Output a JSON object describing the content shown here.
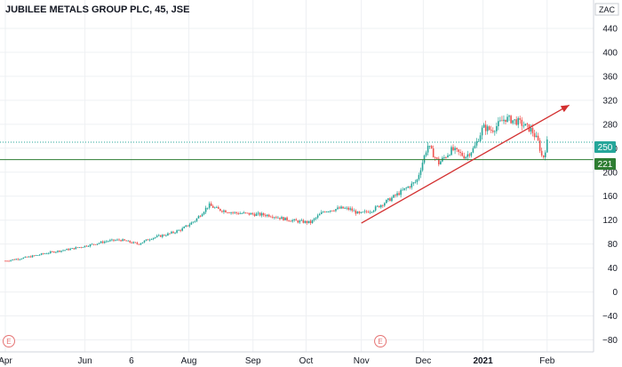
{
  "chart_data": {
    "type": "candlestick",
    "title": "JUBILEE METALS GROUP PLC, 45, JSE",
    "currency": "ZAC",
    "ylim": [
      -100,
      480
    ],
    "y_ticks": [
      -80,
      -40,
      0,
      40,
      80,
      120,
      160,
      200,
      240,
      280,
      320,
      360,
      400,
      440
    ],
    "y_tick_labels": [
      "−80",
      "−40",
      "0",
      "40",
      "80",
      "120",
      "160",
      "200",
      "240",
      "280",
      "320",
      "360",
      "400",
      "440"
    ],
    "x_ticks": [
      {
        "label": "Apr",
        "pos": 0.0,
        "bold": false
      },
      {
        "label": "Jun",
        "pos": 1.8,
        "bold": false
      },
      {
        "label": "6",
        "pos": 2.85,
        "bold": false
      },
      {
        "label": "Aug",
        "pos": 4.15,
        "bold": false
      },
      {
        "label": "Sep",
        "pos": 5.6,
        "bold": false
      },
      {
        "label": "Oct",
        "pos": 6.8,
        "bold": false
      },
      {
        "label": "Nov",
        "pos": 8.05,
        "bold": false
      },
      {
        "label": "Dec",
        "pos": 9.45,
        "bold": false
      },
      {
        "label": "2021",
        "pos": 10.8,
        "bold": true
      },
      {
        "label": "Feb",
        "pos": 12.25,
        "bold": false
      }
    ],
    "x_range": [
      0,
      13.3
    ],
    "price_path": [
      [
        0.0,
        52
      ],
      [
        0.5,
        58
      ],
      [
        1.0,
        66
      ],
      [
        1.5,
        72
      ],
      [
        2.0,
        80
      ],
      [
        2.3,
        85
      ],
      [
        2.6,
        87
      ],
      [
        3.0,
        80
      ],
      [
        3.3,
        90
      ],
      [
        3.7,
        97
      ],
      [
        4.0,
        105
      ],
      [
        4.3,
        120
      ],
      [
        4.6,
        145
      ],
      [
        4.8,
        138
      ],
      [
        5.2,
        132
      ],
      [
        5.6,
        130
      ],
      [
        6.0,
        128
      ],
      [
        6.3,
        122
      ],
      [
        6.6,
        118
      ],
      [
        6.9,
        116
      ],
      [
        7.2,
        135
      ],
      [
        7.6,
        140
      ],
      [
        7.8,
        138
      ],
      [
        8.0,
        130
      ],
      [
        8.3,
        137
      ],
      [
        8.7,
        155
      ],
      [
        9.0,
        170
      ],
      [
        9.3,
        185
      ],
      [
        9.55,
        245
      ],
      [
        9.8,
        215
      ],
      [
        10.1,
        238
      ],
      [
        10.4,
        226
      ],
      [
        10.6,
        240
      ],
      [
        10.8,
        275
      ],
      [
        11.0,
        270
      ],
      [
        11.3,
        290
      ],
      [
        11.6,
        284
      ],
      [
        11.9,
        270
      ],
      [
        12.05,
        250
      ],
      [
        12.15,
        221
      ],
      [
        12.25,
        250
      ]
    ],
    "last_price": 250,
    "last_price_label": "250",
    "horizontal_level": 221,
    "horizontal_level_label": "221",
    "trendline": {
      "from": [
        8.05,
        115
      ],
      "to": [
        12.75,
        312
      ],
      "color": "#d32f2f"
    },
    "event_markers": [
      {
        "label": "E",
        "pos": 0.1
      },
      {
        "label": "E",
        "pos": 8.5
      }
    ],
    "colors": {
      "up": "#26a69a",
      "down": "#ef5350",
      "level_line": "#2e7d32",
      "last_price_line": "#26a69a",
      "grid": "#eef0f3",
      "axis": "#d1d4dc",
      "marker": "#e57373"
    }
  }
}
